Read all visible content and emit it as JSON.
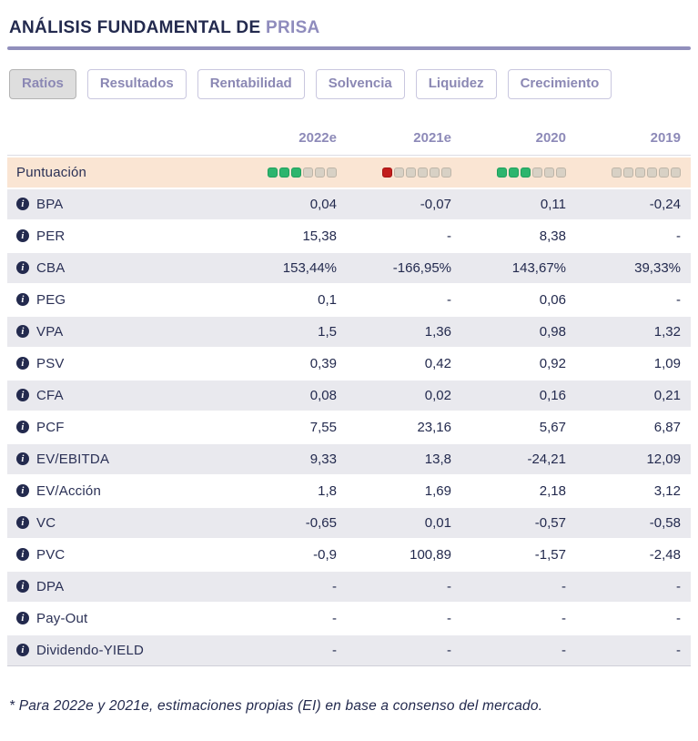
{
  "header": {
    "title_prefix": "ANÁLISIS FUNDAMENTAL DE ",
    "title_company": "PRISA"
  },
  "tabs": [
    {
      "label": "Ratios",
      "active": true
    },
    {
      "label": "Resultados",
      "active": false
    },
    {
      "label": "Rentabilidad",
      "active": false
    },
    {
      "label": "Solvencia",
      "active": false
    },
    {
      "label": "Liquidez",
      "active": false
    },
    {
      "label": "Crecimiento",
      "active": false
    }
  ],
  "table": {
    "columns": [
      "2022e",
      "2021e",
      "2020",
      "2019"
    ],
    "score_row": {
      "label": "Puntuación",
      "total_squares": 6,
      "scores": [
        {
          "filled": 3,
          "color": "green"
        },
        {
          "filled": 1,
          "color": "red"
        },
        {
          "filled": 3,
          "color": "green"
        },
        {
          "filled": 0,
          "color": "none"
        }
      ]
    },
    "rows": [
      {
        "label": "BPA",
        "values": [
          "0,04",
          "-0,07",
          "0,11",
          "-0,24"
        ]
      },
      {
        "label": "PER",
        "values": [
          "15,38",
          "-",
          "8,38",
          "-"
        ]
      },
      {
        "label": "CBA",
        "values": [
          "153,44%",
          "-166,95%",
          "143,67%",
          "39,33%"
        ]
      },
      {
        "label": "PEG",
        "values": [
          "0,1",
          "-",
          "0,06",
          "-"
        ]
      },
      {
        "label": "VPA",
        "values": [
          "1,5",
          "1,36",
          "0,98",
          "1,32"
        ]
      },
      {
        "label": "PSV",
        "values": [
          "0,39",
          "0,42",
          "0,92",
          "1,09"
        ]
      },
      {
        "label": "CFA",
        "values": [
          "0,08",
          "0,02",
          "0,16",
          "0,21"
        ]
      },
      {
        "label": "PCF",
        "values": [
          "7,55",
          "23,16",
          "5,67",
          "6,87"
        ]
      },
      {
        "label": "EV/EBITDA",
        "values": [
          "9,33",
          "13,8",
          "-24,21",
          "12,09"
        ]
      },
      {
        "label": "EV/Acción",
        "values": [
          "1,8",
          "1,69",
          "2,18",
          "3,12"
        ]
      },
      {
        "label": "VC",
        "values": [
          "-0,65",
          "0,01",
          "-0,57",
          "-0,58"
        ]
      },
      {
        "label": "PVC",
        "values": [
          "-0,9",
          "100,89",
          "-1,57",
          "-2,48"
        ]
      },
      {
        "label": "DPA",
        "values": [
          "-",
          "-",
          "-",
          "-"
        ]
      },
      {
        "label": "Pay-Out",
        "values": [
          "-",
          "-",
          "-",
          "-"
        ]
      },
      {
        "label": "Dividendo-YIELD",
        "values": [
          "-",
          "-",
          "-",
          "-"
        ]
      }
    ]
  },
  "icons": {
    "info": "i"
  },
  "colors": {
    "title_text": "#232a4e",
    "company_accent": "#8f8cbd",
    "divider": "#918fbc",
    "tab_text": "#8b88b4",
    "tab_active_bg": "#dedede",
    "column_header_text": "#8d8ab8",
    "score_row_bg": "#fae5d3",
    "shade_row_bg": "#e9e9ee",
    "square_green": "#2db56e",
    "square_red": "#c21d1c",
    "square_empty": "#d8d1c5"
  },
  "footnote": "* Para 2022e y 2021e, estimaciones propias (EI) en base a consenso del mercado."
}
